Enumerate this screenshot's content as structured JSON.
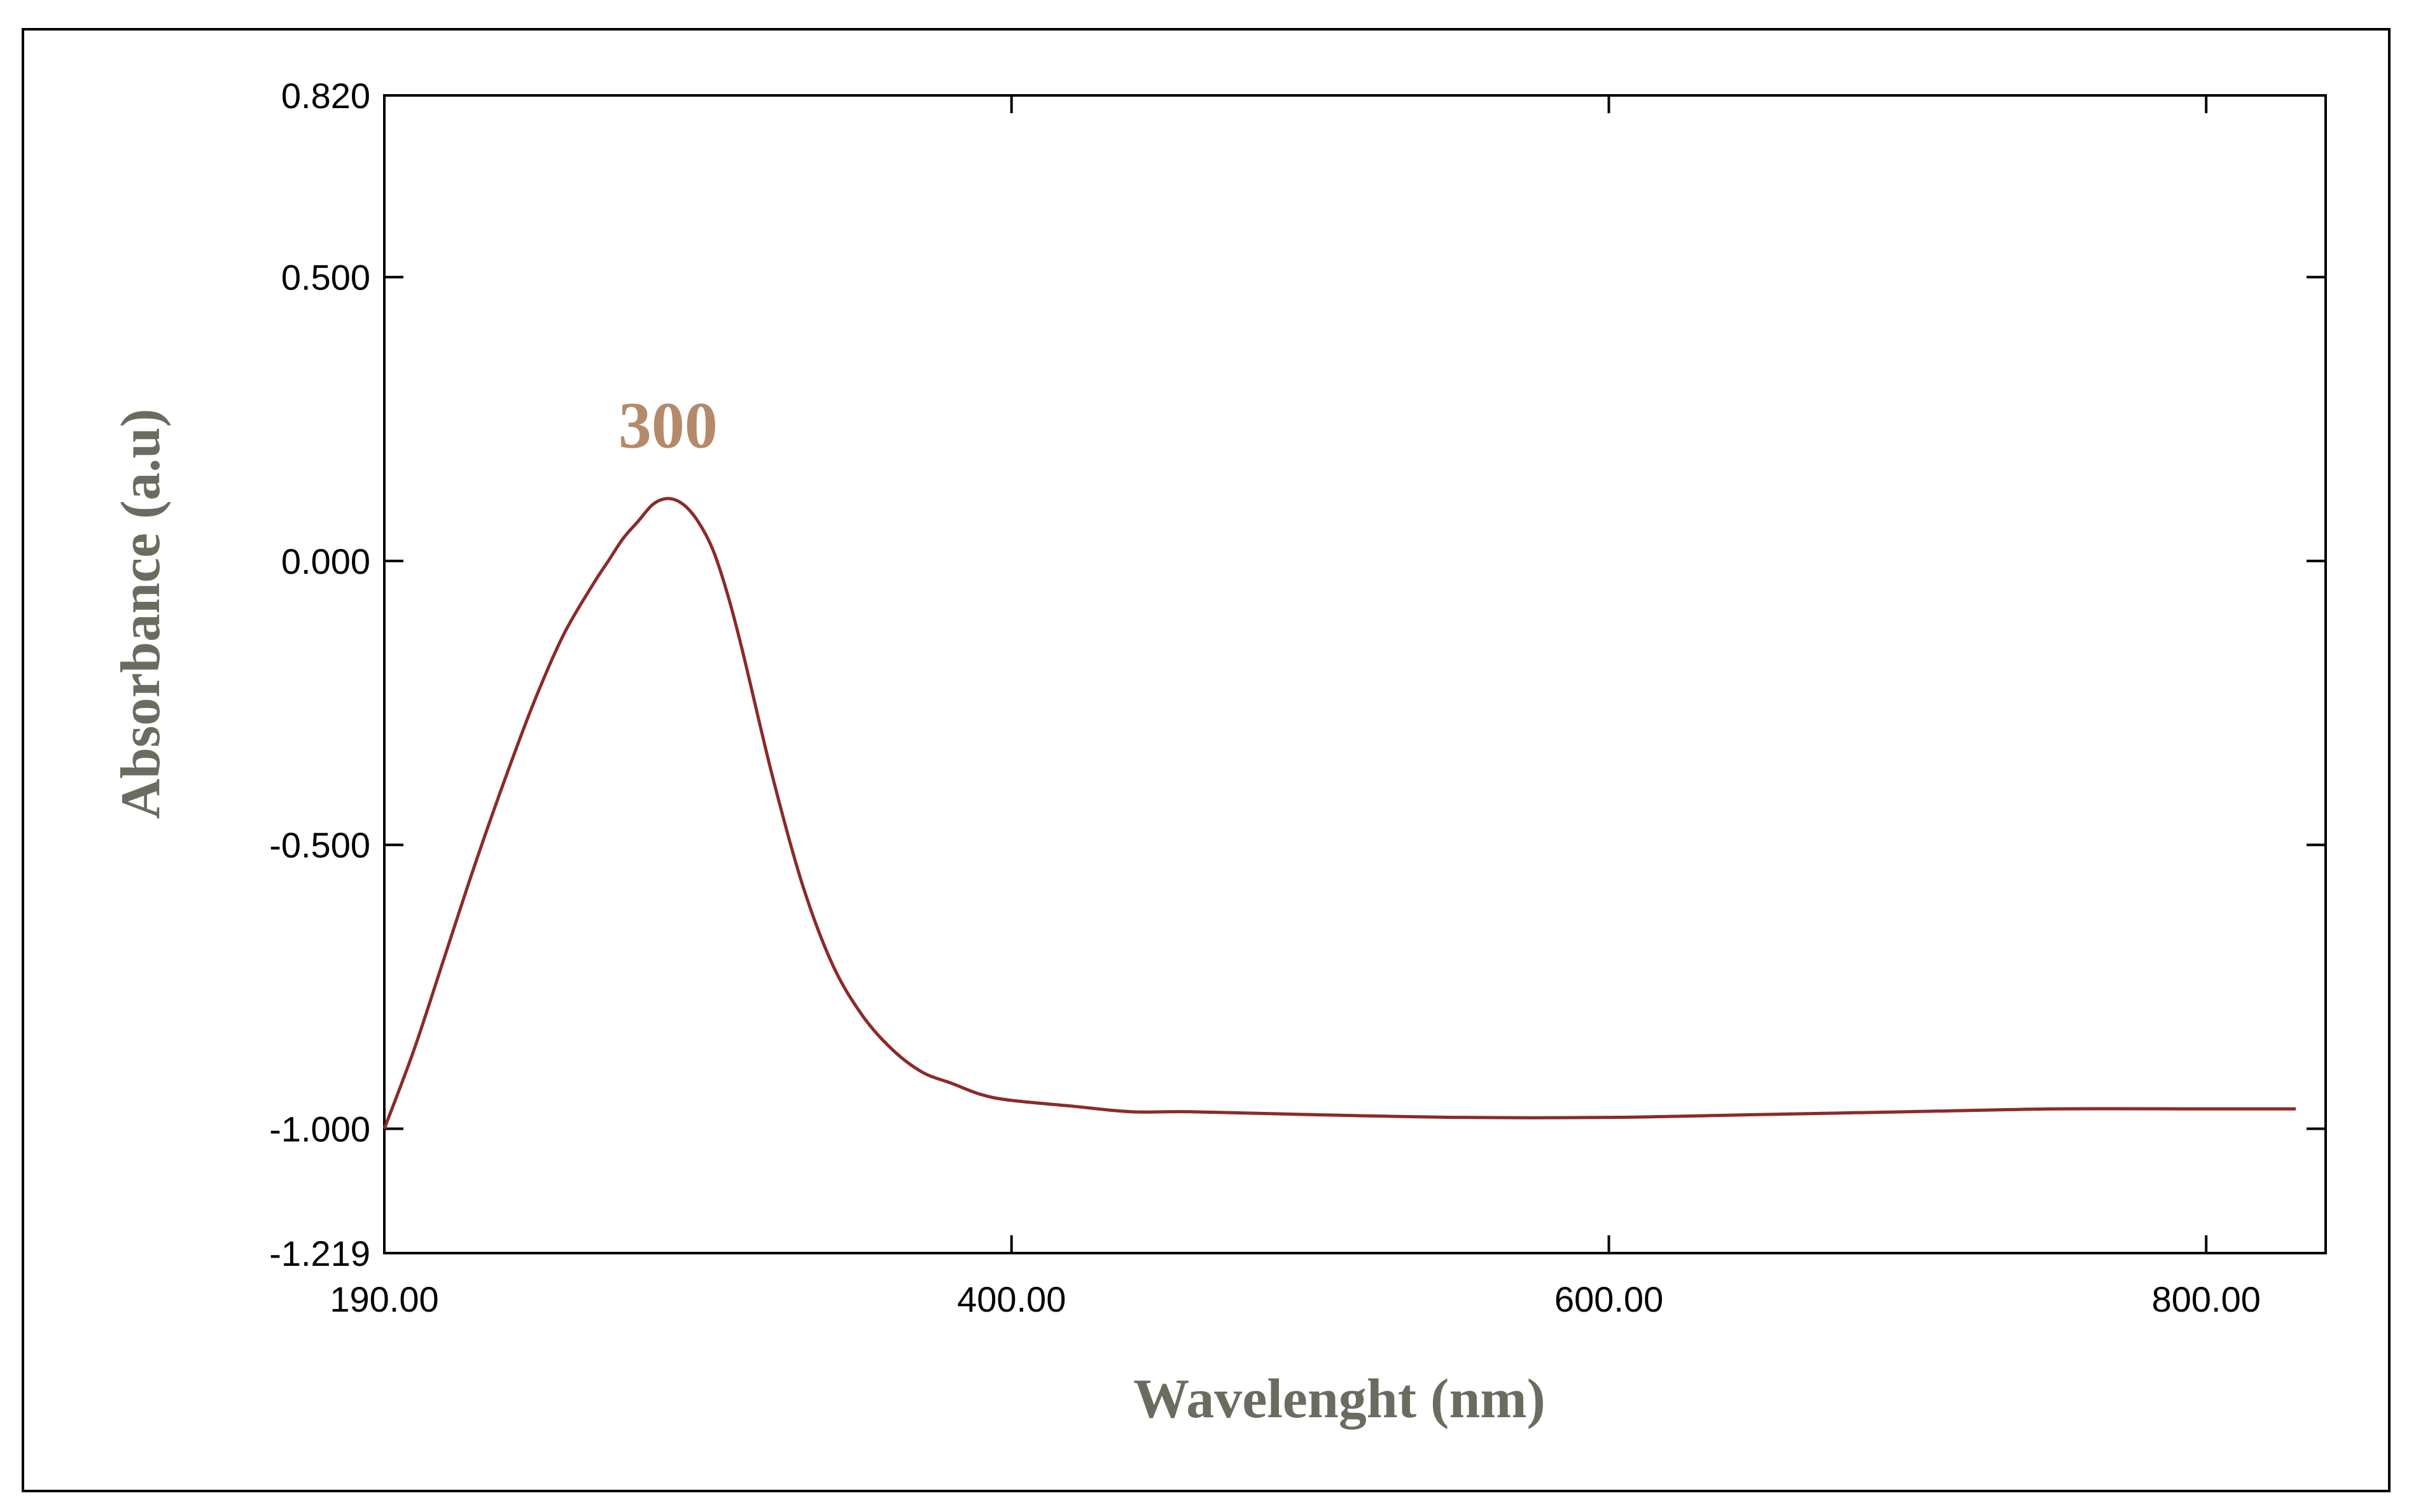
{
  "chart_data": {
    "type": "line",
    "title": "",
    "xlabel": "Wavelenght (nm)",
    "ylabel": "Absorbance (a.u)",
    "xlim": [
      190,
      840
    ],
    "ylim": [
      -1.219,
      0.82
    ],
    "x_ticks": [
      190,
      400,
      600,
      800
    ],
    "x_tick_labels": [
      "190.00",
      "400.00",
      "600.00",
      "800.00"
    ],
    "y_ticks": [
      0.82,
      0.5,
      0.0,
      -0.5,
      -1.0,
      -1.219
    ],
    "y_tick_labels": [
      "0.820",
      "0.500",
      "0.000",
      "-0.500",
      "-1.000",
      "-1.219"
    ],
    "grid": false,
    "line_color": "#8b2a2a",
    "annotations": [
      {
        "text": "300",
        "x": 285,
        "y": 0.2
      }
    ],
    "series": [
      {
        "x": [
          190,
          200,
          210,
          220,
          230,
          240,
          250,
          260,
          265,
          270,
          275,
          280,
          285,
          290,
          295,
          300,
          305,
          310,
          320,
          330,
          340,
          350,
          360,
          370,
          380,
          390,
          400,
          420,
          440,
          460,
          500,
          550,
          600,
          650,
          700,
          750,
          800,
          830
        ],
        "y": [
          -1.0,
          -0.86,
          -0.7,
          -0.54,
          -0.39,
          -0.25,
          -0.13,
          -0.04,
          0.0,
          0.04,
          0.07,
          0.1,
          0.11,
          0.1,
          0.07,
          0.02,
          -0.06,
          -0.16,
          -0.38,
          -0.57,
          -0.71,
          -0.8,
          -0.86,
          -0.9,
          -0.92,
          -0.94,
          -0.95,
          -0.96,
          -0.97,
          -0.97,
          -0.975,
          -0.98,
          -0.98,
          -0.975,
          -0.97,
          -0.965,
          -0.965,
          -0.965
        ]
      }
    ]
  }
}
